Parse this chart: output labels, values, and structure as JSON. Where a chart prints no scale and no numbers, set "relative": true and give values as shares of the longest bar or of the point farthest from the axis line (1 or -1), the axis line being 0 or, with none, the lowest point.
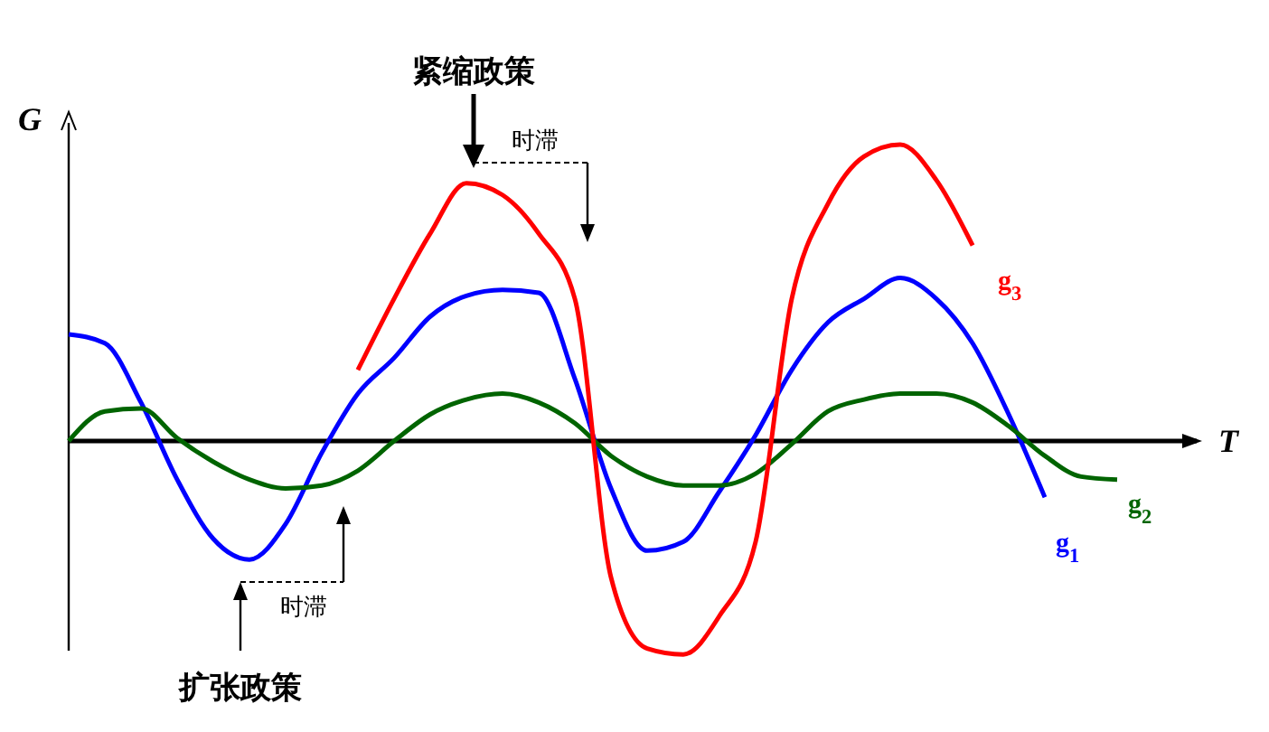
{
  "chart_data": {
    "type": "line",
    "relative": true,
    "xlabel": "T",
    "ylabel": "G",
    "legend": false,
    "marker": "none",
    "line_style": "solid",
    "categories": [
      null,
      null,
      null,
      null,
      null,
      null,
      null,
      null,
      null,
      null,
      null,
      null,
      null,
      null,
      null,
      null,
      null,
      null,
      null,
      null,
      null,
      null,
      null,
      null,
      null,
      null,
      null,
      null,
      null,
      null
    ],
    "series": [
      {
        "name": "g$_{1}$",
        "color": "#0000ff",
        "values": [
          0.36,
          0.33,
          0.13,
          -0.13,
          -0.33,
          -0.4,
          -0.28,
          -0.04,
          0.16,
          0.28,
          0.42,
          0.49,
          0.51,
          0.5,
          0.21,
          -0.16,
          -0.37,
          -0.34,
          -0.17,
          0.02,
          0.24,
          0.4,
          0.48,
          0.55,
          0.48,
          0.33,
          0.09,
          -0.19,
          null,
          null
        ]
      },
      {
        "name": "g$_{2}$",
        "color": "#006400",
        "values": [
          0,
          0.1,
          0.11,
          0.01,
          -0.07,
          -0.13,
          -0.16,
          -0.15,
          -0.1,
          0,
          0.09,
          0.14,
          0.16,
          0.13,
          0.06,
          -0.05,
          -0.12,
          -0.15,
          -0.15,
          -0.11,
          -0.01,
          0.1,
          0.14,
          0.16,
          0.16,
          0.13,
          0.05,
          -0.05,
          -0.12,
          -0.13
        ]
      },
      {
        "name": "g$_{3}$",
        "color": "#ff0000",
        "values": [
          null,
          null,
          null,
          null,
          null,
          null,
          null,
          null,
          0.24,
          0.48,
          0.7,
          0.87,
          0.83,
          0.7,
          0.48,
          -0.46,
          -0.7,
          -0.72,
          -0.59,
          -0.34,
          0.48,
          0.8,
          0.96,
          1,
          0.88,
          0.66,
          null,
          null,
          null,
          null
        ]
      }
    ],
    "annotations": [
      "紧缩政策",
      "时滞",
      "扩张政策",
      "时滞"
    ]
  }
}
